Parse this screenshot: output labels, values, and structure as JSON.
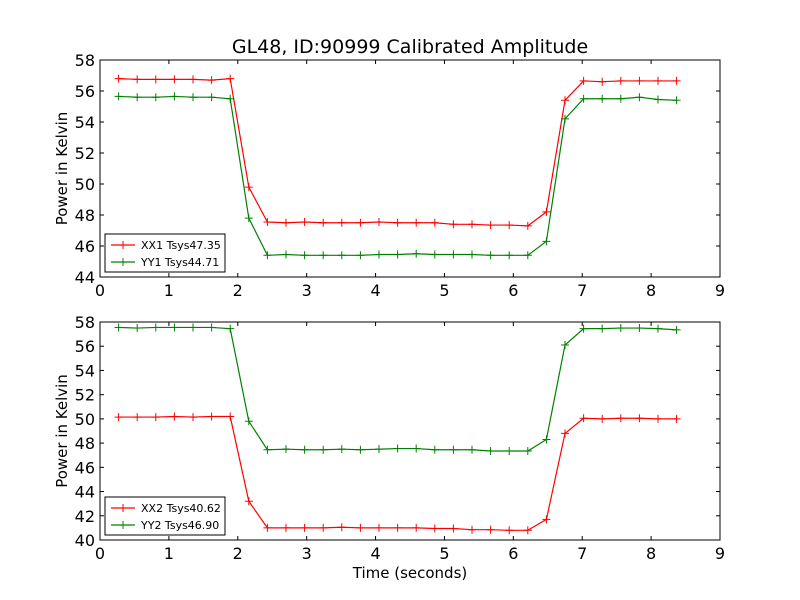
{
  "title": "GL48, ID:90999 Calibrated Amplitude",
  "chart_data": [
    {
      "type": "line",
      "ylabel": "Power in Kelvin",
      "xlabel": "",
      "xlim": [
        0,
        9
      ],
      "ylim": [
        44,
        58
      ],
      "xticks": [
        0,
        1,
        2,
        3,
        4,
        5,
        6,
        7,
        8,
        9
      ],
      "yticks": [
        44,
        46,
        48,
        50,
        52,
        54,
        56,
        58
      ],
      "grid": false,
      "legend_position": "lower-left",
      "x": [
        0.27,
        0.54,
        0.81,
        1.08,
        1.35,
        1.62,
        1.89,
        2.16,
        2.43,
        2.7,
        2.97,
        3.24,
        3.51,
        3.78,
        4.05,
        4.32,
        4.59,
        4.86,
        5.13,
        5.4,
        5.67,
        5.94,
        6.21,
        6.48,
        6.75,
        7.02,
        7.29,
        7.56,
        7.83,
        8.1,
        8.37
      ],
      "series": [
        {
          "name": "XX1 Tsys47.35",
          "color": "#ff0000",
          "values": [
            56.8,
            56.75,
            56.75,
            56.75,
            56.75,
            56.7,
            56.8,
            49.8,
            47.55,
            47.5,
            47.55,
            47.5,
            47.5,
            47.5,
            47.55,
            47.5,
            47.5,
            47.5,
            47.4,
            47.4,
            47.35,
            47.35,
            47.3,
            48.2,
            55.4,
            56.65,
            56.6,
            56.65,
            56.65,
            56.65,
            56.65
          ]
        },
        {
          "name": "YY1 Tsys44.71",
          "color": "#008000",
          "values": [
            55.65,
            55.6,
            55.6,
            55.65,
            55.6,
            55.6,
            55.5,
            47.8,
            45.4,
            45.45,
            45.4,
            45.4,
            45.4,
            45.4,
            45.45,
            45.45,
            45.5,
            45.45,
            45.45,
            45.45,
            45.4,
            45.4,
            45.4,
            46.3,
            54.2,
            55.5,
            55.5,
            55.5,
            55.6,
            55.45,
            55.4
          ]
        }
      ]
    },
    {
      "type": "line",
      "ylabel": "Power in Kelvin",
      "xlabel": "Time (seconds)",
      "xlim": [
        0,
        9
      ],
      "ylim": [
        40,
        58
      ],
      "xticks": [
        0,
        1,
        2,
        3,
        4,
        5,
        6,
        7,
        8,
        9
      ],
      "yticks": [
        40,
        42,
        44,
        46,
        48,
        50,
        52,
        54,
        56,
        58
      ],
      "grid": false,
      "legend_position": "lower-left",
      "x": [
        0.27,
        0.54,
        0.81,
        1.08,
        1.35,
        1.62,
        1.89,
        2.16,
        2.43,
        2.7,
        2.97,
        3.24,
        3.51,
        3.78,
        4.05,
        4.32,
        4.59,
        4.86,
        5.13,
        5.4,
        5.67,
        5.94,
        6.21,
        6.48,
        6.75,
        7.02,
        7.29,
        7.56,
        7.83,
        8.1,
        8.37
      ],
      "series": [
        {
          "name": "XX2 Tsys40.62",
          "color": "#ff0000",
          "values": [
            50.15,
            50.15,
            50.15,
            50.2,
            50.15,
            50.2,
            50.2,
            43.2,
            41.0,
            41.0,
            41.0,
            41.0,
            41.05,
            41.0,
            41.0,
            41.0,
            41.0,
            40.95,
            40.95,
            40.85,
            40.85,
            40.8,
            40.8,
            41.7,
            48.8,
            50.05,
            50.0,
            50.05,
            50.05,
            50.0,
            50.0
          ]
        },
        {
          "name": "YY2 Tsys46.90",
          "color": "#008000",
          "values": [
            57.55,
            57.5,
            57.55,
            57.55,
            57.55,
            57.55,
            57.45,
            49.8,
            47.45,
            47.5,
            47.45,
            47.45,
            47.5,
            47.45,
            47.5,
            47.55,
            47.55,
            47.45,
            47.45,
            47.45,
            47.35,
            47.35,
            47.35,
            48.3,
            56.1,
            57.45,
            57.45,
            57.5,
            57.5,
            57.45,
            57.35
          ]
        }
      ]
    }
  ]
}
